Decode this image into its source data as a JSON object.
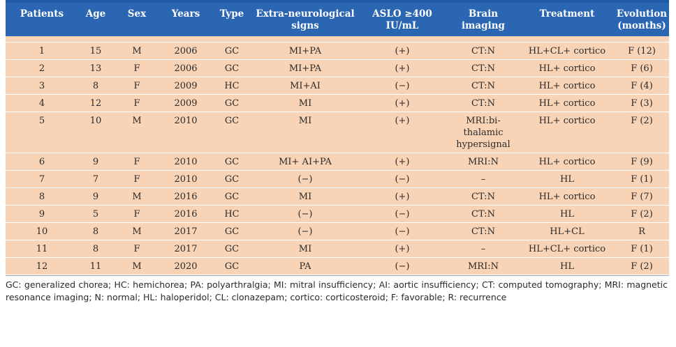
{
  "table": {
    "headers": [
      "Patients",
      "Age",
      "Sex",
      "Years",
      "Type",
      "Extra-neurological signs",
      "ASLO ≥400 IU/mL",
      "Brain imaging",
      "Treatment",
      "Evolution (months)"
    ],
    "rows": [
      [
        "1",
        "15",
        "M",
        "2006",
        "GC",
        "MI+PA",
        "(+)",
        "CT:N",
        "HL+CL+ cortico",
        "F (12)"
      ],
      [
        "2",
        "13",
        "F",
        "2006",
        "GC",
        "MI+PA",
        "(+)",
        "CT:N",
        "HL+ cortico",
        "F (6)"
      ],
      [
        "3",
        "8",
        "F",
        "2009",
        "HC",
        "MI+AI",
        "(−)",
        "CT:N",
        "HL+ cortico",
        "F (4)"
      ],
      [
        "4",
        "12",
        "F",
        "2009",
        "GC",
        "MI",
        "(+)",
        "CT:N",
        "HL+ cortico",
        "F (3)"
      ],
      [
        "5",
        "10",
        "M",
        "2010",
        "GC",
        "MI",
        "(+)",
        "MRI:bi-thalamic hypersignal",
        "HL+ cortico",
        "F (2)"
      ],
      [
        "6",
        "9",
        "F",
        "2010",
        "GC",
        "MI+ AI+PA",
        "(+)",
        "MRI:N",
        "HL+ cortico",
        "F (9)"
      ],
      [
        "7",
        "7",
        "F",
        "2010",
        "GC",
        "(−)",
        "(−)",
        "–",
        "HL",
        "F (1)"
      ],
      [
        "8",
        "9",
        "M",
        "2016",
        "GC",
        "MI",
        "(+)",
        "CT:N",
        "HL+ cortico",
        "F (7)"
      ],
      [
        "9",
        "5",
        "F",
        "2016",
        "HC",
        "(−)",
        "(−)",
        "CT:N",
        "HL",
        "F (2)"
      ],
      [
        "10",
        "8",
        "M",
        "2017",
        "GC",
        "(−)",
        "(−)",
        "CT:N",
        "HL+CL",
        "R"
      ],
      [
        "11",
        "8",
        "F",
        "2017",
        "GC",
        "MI",
        "(+)",
        "–",
        "HL+CL+ cortico",
        "F (1)"
      ],
      [
        "12",
        "11",
        "M",
        "2020",
        "GC",
        "PA",
        "(−)",
        "MRI:N",
        "HL",
        "F (2)"
      ]
    ]
  },
  "footnote": "GC: generalized chorea; HC: hemichorea; PA: polyarthralgia; MI: mitral insufficiency; AI: aortic insufficiency; CT: computed tomography; MRI: magnetic resonance imaging; N: normal; HL: haloperidol; CL: clonazepam; cortico: corticosteroid; F: favorable; R: recurrence",
  "colors": {
    "header_bg": "#2a66b1",
    "row_bg": "#f8d3b5",
    "header_text": "#ffffff"
  }
}
